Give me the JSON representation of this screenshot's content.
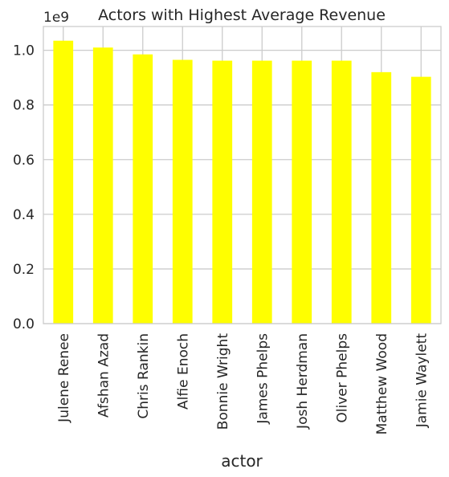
{
  "chart_data": {
    "type": "bar",
    "title": "Actors with Highest Average Revenue",
    "xlabel": "actor",
    "ylabel": "",
    "scale_label": "1e9",
    "categories": [
      "Julene Renee",
      "Afshan Azad",
      "Chris Rankin",
      "Alfie Enoch",
      "Bonnie Wright",
      "James Phelps",
      "Josh Herdman",
      "Oliver Phelps",
      "Matthew Wood",
      "Jamie Waylett"
    ],
    "values": [
      1.035,
      1.01,
      0.985,
      0.965,
      0.962,
      0.962,
      0.962,
      0.962,
      0.92,
      0.903
    ],
    "yticks": [
      0.0,
      0.2,
      0.4,
      0.6,
      0.8,
      1.0
    ],
    "ytick_labels": [
      "0.0",
      "0.2",
      "0.4",
      "0.6",
      "0.8",
      "1.0"
    ],
    "ylim": [
      0,
      1.087
    ],
    "grid": true,
    "bar_color": "#ffff00",
    "grid_color": "#cccccc",
    "axis_color": "#cccccc",
    "text_color": "#262626"
  }
}
